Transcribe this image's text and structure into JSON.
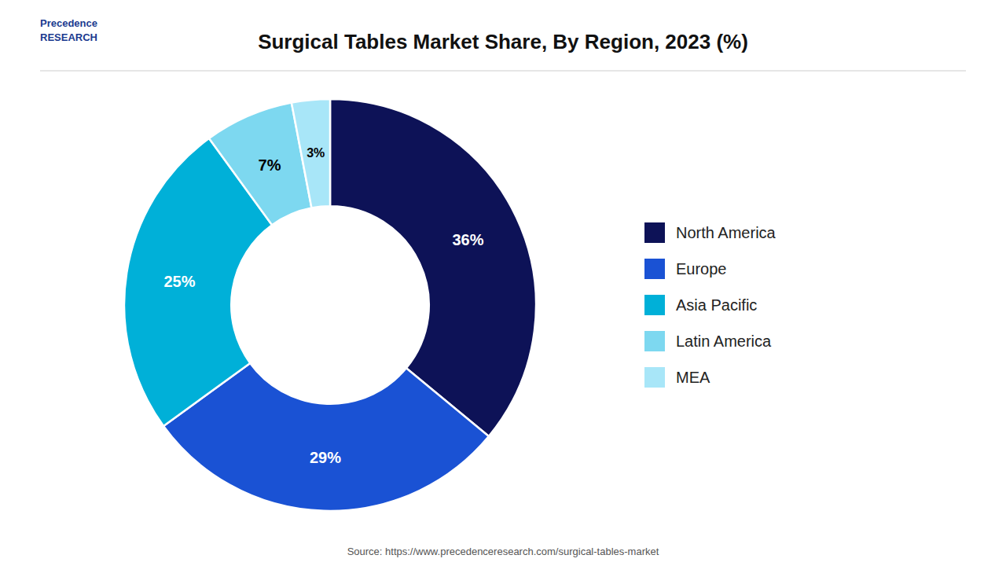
{
  "chart_data": {
    "type": "donut",
    "title": "Surgical Tables Market Share, By Region, 2023 (%)",
    "categories": [
      "North America",
      "Europe",
      "Asia Pacific",
      "Latin America",
      "MEA"
    ],
    "values": [
      36,
      29,
      25,
      7,
      3
    ],
    "value_labels": [
      "36%",
      "29%",
      "25%",
      "7%",
      "3%"
    ],
    "colors": [
      "#0d1257",
      "#1a52d4",
      "#00b0d8",
      "#7dd8f0",
      "#a8e6f8"
    ],
    "data_labels": true,
    "legend": "right",
    "annotations": [
      "Precedence\nRESEARCH",
      "Source: https://www.precedenceresearch.com/surgical-tables-market"
    ]
  }
}
